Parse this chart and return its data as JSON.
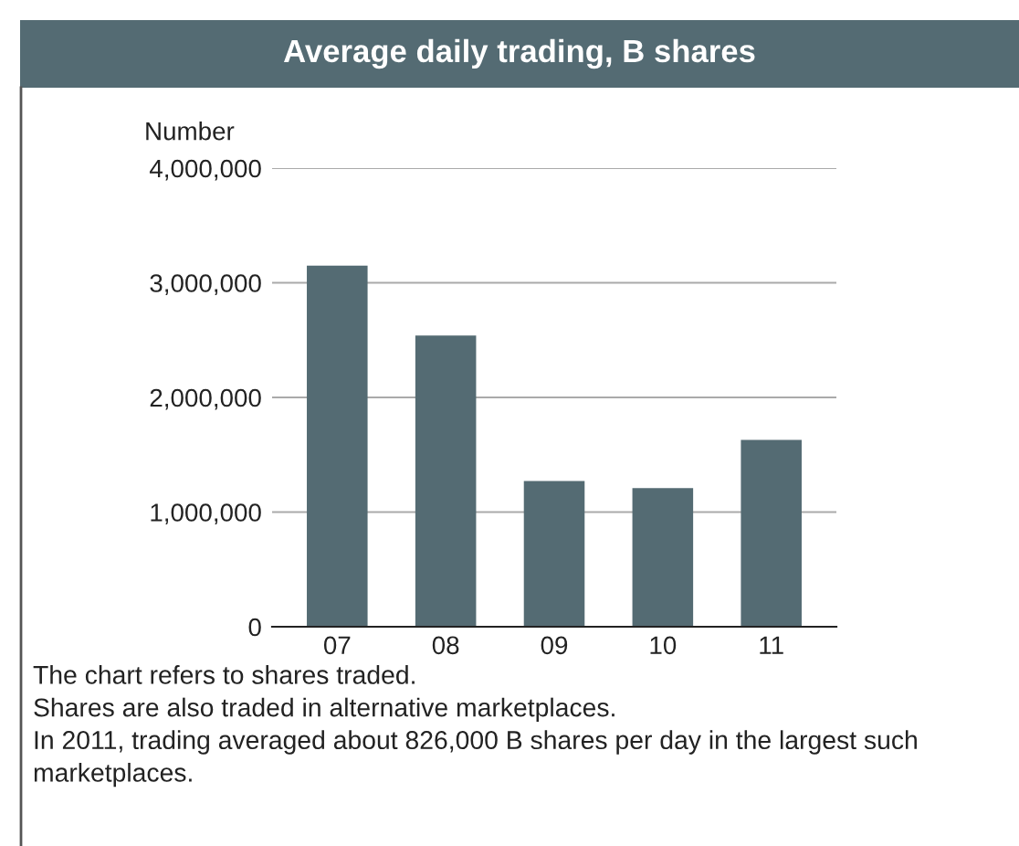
{
  "chart_data": {
    "type": "bar",
    "title": "Average daily trading, B shares",
    "ylabel": "Number",
    "categories": [
      "07",
      "08",
      "09",
      "10",
      "11"
    ],
    "values": [
      3150000,
      2540000,
      1270000,
      1210000,
      1630000
    ],
    "color": "#546b73",
    "ylim": [
      0,
      4000000
    ],
    "yticks": [
      {
        "value": 0,
        "label": "0"
      },
      {
        "value": 1000000,
        "label": "1,000,000"
      },
      {
        "value": 2000000,
        "label": "2,000,000"
      },
      {
        "value": 3000000,
        "label": "3,000,000"
      },
      {
        "value": 4000000,
        "label": "4,000,000"
      }
    ],
    "grid": "y",
    "annotations": [
      "The chart refers to shares traded.\nShares are also traded in alternative marketplaces.\nIn 2011, trading averaged about 826,000 B shares per day in the largest such marketplaces."
    ]
  }
}
